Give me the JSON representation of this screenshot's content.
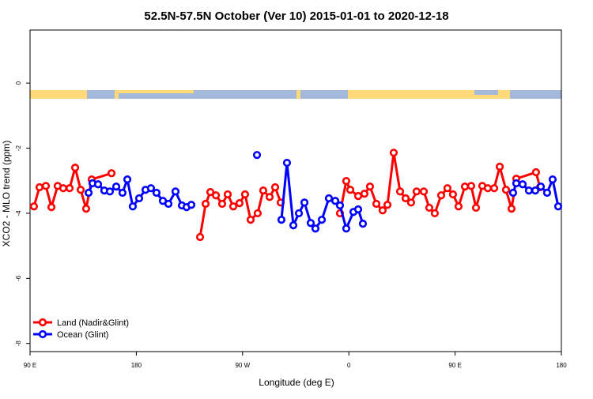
{
  "chart_data": {
    "type": "line",
    "title": "52.5N-57.5N October (Ver 10)   2015-01-01 to 2020-12-18",
    "x_label": "Longitude (deg E)",
    "y_label": "XCO2 - MLO trend (ppm)",
    "xlim": [
      90,
      540
    ],
    "ylim": [
      -8.25,
      1.63
    ],
    "xticks": [
      {
        "value": 90,
        "label": "90 E"
      },
      180,
      {
        "value": 270,
        "label": "90 W"
      },
      {
        "value": 360,
        "label": "0"
      },
      {
        "value": 450,
        "label": "90 E"
      },
      {
        "value": 540,
        "label": "180"
      }
    ],
    "yticks": [
      0,
      -2,
      -4,
      -6,
      -8
    ],
    "legend": "bottom-left",
    "series": [
      {
        "name": "Land (Nadir&Glint)",
        "color": "#ff0000",
        "x": [
          93.3,
          98.0,
          103.4,
          108.1,
          113.4,
          118.1,
          123.5,
          128.2,
          132.9,
          137.5,
          142.2,
          159.0,
          null,
          234.0,
          238.7,
          242.7,
          247.4,
          252.7,
          257.4,
          262.1,
          267.4,
          272.1,
          276.8,
          282.8,
          287.5,
          292.9,
          297.6,
          302.3,
          null,
          352.5,
          357.8,
          361.2,
          367.9,
          373.2,
          377.9,
          383.3,
          388.6,
          392.7,
          398.0,
          403.4,
          408.1,
          412.7,
          417.4,
          423.5,
          428.1,
          432.8,
          438.2,
          443.5,
          448.2,
          452.9,
          458.3,
          463.6,
          467.7,
          473.0,
          477.7,
          483.1,
          487.8,
          493.1,
          497.8,
          501.8,
          518.5,
          521.9
        ],
        "values": [
          -3.79,
          -3.2,
          -3.16,
          -3.81,
          -3.16,
          -3.23,
          -3.23,
          -2.6,
          -3.28,
          -3.86,
          -2.96,
          -2.77,
          null,
          -4.73,
          -3.71,
          -3.35,
          -3.45,
          -3.71,
          -3.42,
          -3.79,
          -3.69,
          -3.42,
          -4.2,
          -4.0,
          -3.3,
          -3.5,
          -3.2,
          -3.67,
          null,
          -4.0,
          -3.01,
          -3.28,
          -3.47,
          -3.4,
          -3.18,
          -3.71,
          -3.91,
          -3.74,
          -2.14,
          -3.33,
          -3.54,
          -3.67,
          -3.33,
          -3.33,
          -3.83,
          -4.0,
          -3.45,
          -3.23,
          -3.42,
          -3.79,
          -3.18,
          -3.16,
          -3.83,
          -3.16,
          -3.23,
          -3.23,
          -2.57,
          -3.28,
          -3.86,
          -2.94,
          -2.74,
          -3.2
        ]
      },
      {
        "name": "Ocean (Glint)",
        "color": "#0000ff",
        "x": [
          139.6,
          142.9,
          147.6,
          152.9,
          157.6,
          163.0,
          168.3,
          172.4,
          177.0,
          182.4,
          187.8,
          192.4,
          197.1,
          202.5,
          207.2,
          213.2,
          218.6,
          222.6,
          226.6,
          null,
          282.2,
          null,
          302.9,
          307.6,
          313.0,
          317.7,
          322.4,
          327.7,
          331.7,
          337.1,
          343.1,
          348.5,
          352.5,
          357.8,
          363.9,
          367.9,
          371.9,
          null,
          499.1,
          501.8,
          507.2,
          512.5,
          517.9,
          522.6,
          527.9,
          532.6,
          537.3
        ],
        "values": [
          -3.37,
          -3.08,
          -3.11,
          -3.3,
          -3.33,
          -3.18,
          -3.37,
          -2.96,
          -3.79,
          -3.54,
          -3.28,
          -3.23,
          -3.37,
          -3.62,
          -3.71,
          -3.33,
          -3.76,
          -3.81,
          -3.74,
          null,
          -2.21,
          null,
          -4.2,
          -2.45,
          -4.37,
          -4.0,
          -3.67,
          -4.3,
          -4.47,
          -4.2,
          -3.54,
          -3.62,
          -3.76,
          -4.47,
          -3.96,
          -3.88,
          -4.32,
          null,
          -3.37,
          -3.08,
          -3.11,
          -3.3,
          -3.3,
          -3.18,
          -3.37,
          -2.96,
          -3.79
        ]
      }
    ]
  }
}
